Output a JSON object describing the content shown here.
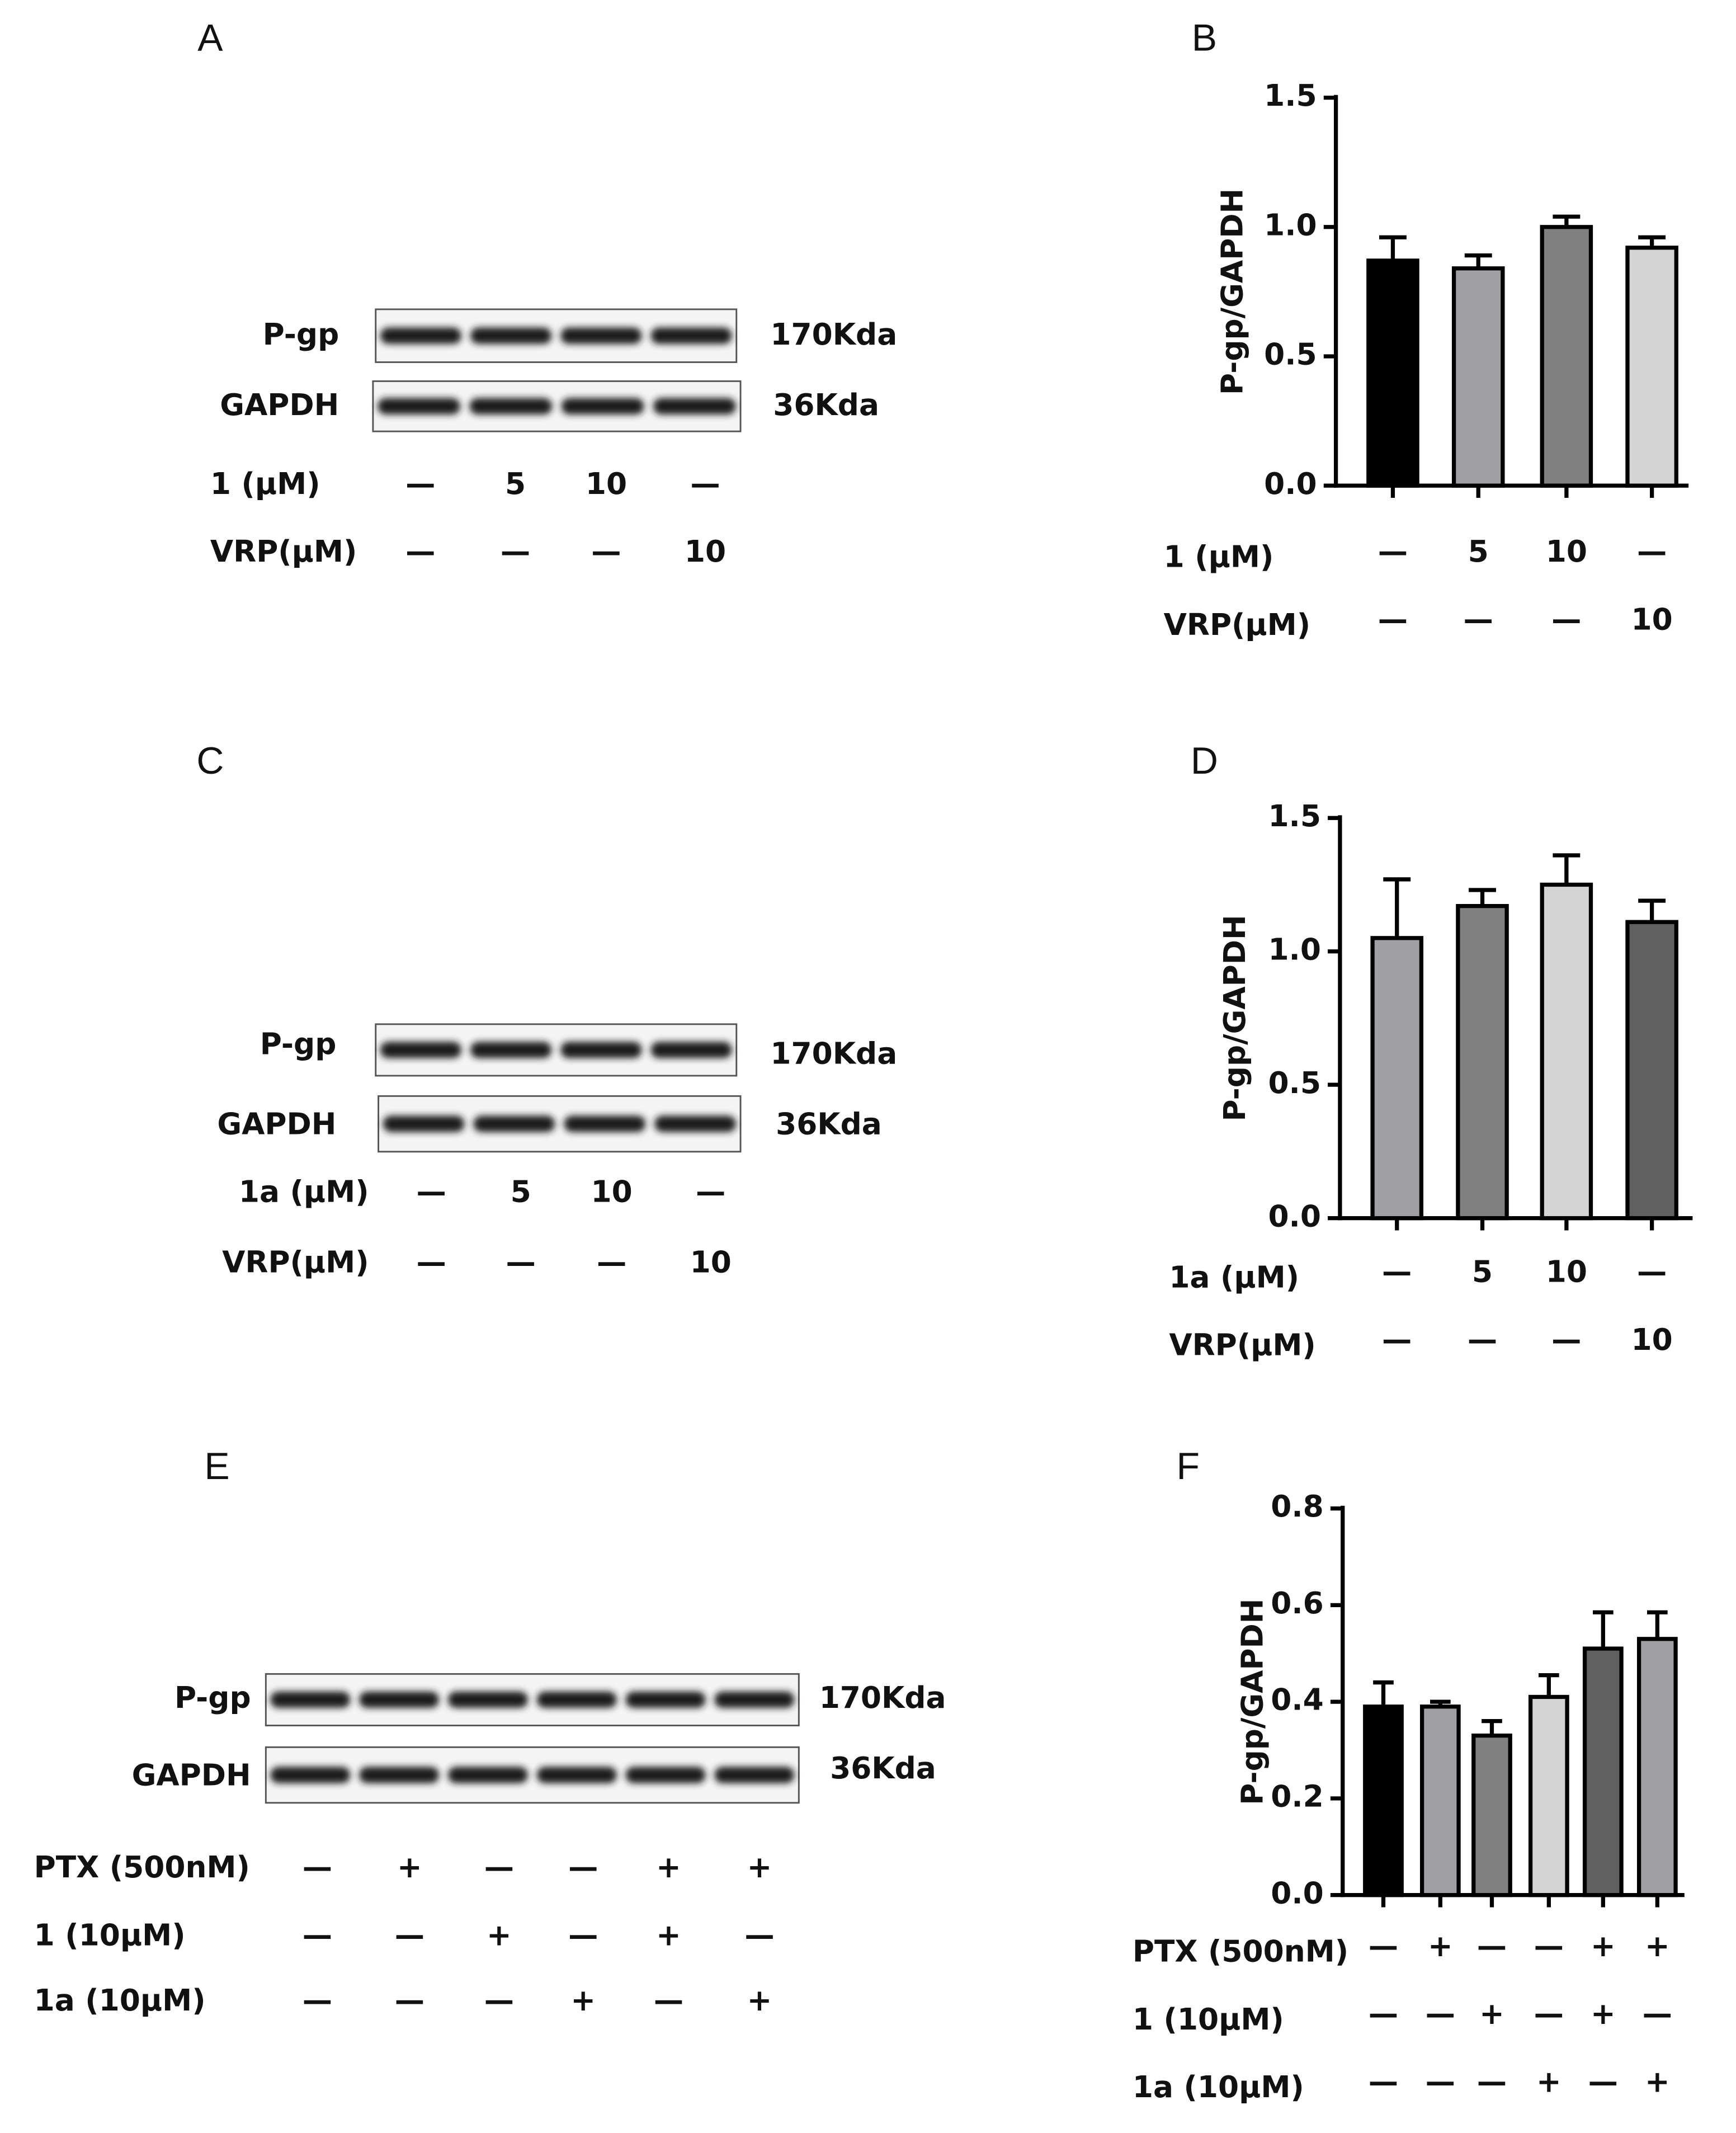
{
  "blots": [
    {
      "panel": "A",
      "rows": [
        {
          "label": "P-gp",
          "size": "170Kda"
        },
        {
          "label": "GAPDH",
          "size": "36Kda"
        }
      ],
      "conditions": [
        {
          "label": "1 (μM)",
          "values": [
            "—",
            "5",
            "10",
            "—"
          ]
        },
        {
          "label": "VRP(μM)",
          "values": [
            "—",
            "—",
            "—",
            "10"
          ]
        }
      ]
    },
    {
      "panel": "C",
      "rows": [
        {
          "label": "P-gp",
          "size": "170Kda"
        },
        {
          "label": "GAPDH",
          "size": "36Kda"
        }
      ],
      "conditions": [
        {
          "label": "1a (μM)",
          "values": [
            "—",
            "5",
            "10",
            "—"
          ]
        },
        {
          "label": "VRP(μM)",
          "values": [
            "—",
            "—",
            "—",
            "10"
          ]
        }
      ]
    },
    {
      "panel": "E",
      "rows": [
        {
          "label": "P-gp",
          "size": "170Kda"
        },
        {
          "label": "GAPDH",
          "size": "36Kda"
        }
      ],
      "conditions": [
        {
          "label": "PTX (500nM)",
          "values": [
            "—",
            "+",
            "—",
            "—",
            "+",
            "+"
          ]
        },
        {
          "label": "1 (10μM)",
          "values": [
            "—",
            "—",
            "+",
            "—",
            "+",
            "—"
          ]
        },
        {
          "label": "1a (10μM)",
          "values": [
            "—",
            "—",
            "—",
            "+",
            "—",
            "+"
          ]
        }
      ]
    }
  ],
  "chart_data": [
    {
      "type": "bar",
      "panel": "B",
      "ylabel": "P-gp/GAPDH",
      "values": [
        0.87,
        0.84,
        1.0,
        0.92
      ],
      "errors": [
        0.09,
        0.05,
        0.04,
        0.04
      ],
      "colors": [
        "#000000",
        "#a0a0a4",
        "#808080",
        "#d4d4d4"
      ],
      "ylim": [
        0,
        1.5
      ],
      "yticks": [
        {
          "value": 0,
          "label": "0.0"
        },
        {
          "value": 0.5,
          "label": "0.5"
        },
        {
          "value": 1,
          "label": "1.0"
        },
        {
          "value": 1.5,
          "label": "1.5"
        }
      ],
      "conditions": [
        {
          "label": "1 (μM)",
          "values": [
            "—",
            "5",
            "10",
            "—"
          ]
        },
        {
          "label": "VRP(μM)",
          "values": [
            "—",
            "—",
            "—",
            "10"
          ]
        }
      ]
    },
    {
      "type": "bar",
      "panel": "D",
      "ylabel": "P-gp/GAPDH",
      "values": [
        1.05,
        1.17,
        1.25,
        1.11
      ],
      "errors": [
        0.22,
        0.06,
        0.11,
        0.08
      ],
      "colors": [
        "#a0a0a4",
        "#808080",
        "#d4d4d4",
        "#606060"
      ],
      "ylim": [
        0,
        1.5
      ],
      "yticks": [
        {
          "value": 0,
          "label": "0.0"
        },
        {
          "value": 0.5,
          "label": "0.5"
        },
        {
          "value": 1,
          "label": "1.0"
        },
        {
          "value": 1.5,
          "label": "1.5"
        }
      ],
      "conditions": [
        {
          "label": "1a (μM)",
          "values": [
            "—",
            "5",
            "10",
            "—"
          ]
        },
        {
          "label": "VRP(μM)",
          "values": [
            "—",
            "—",
            "—",
            "10"
          ]
        }
      ]
    },
    {
      "type": "bar",
      "panel": "F",
      "ylabel": "P-gp/GAPDH",
      "values": [
        0.39,
        0.39,
        0.33,
        0.41,
        0.51,
        0.53
      ],
      "errors": [
        0.05,
        0.01,
        0.03,
        0.045,
        0.075,
        0.055
      ],
      "colors": [
        "#000000",
        "#a0a0a4",
        "#808080",
        "#d4d4d4",
        "#606060",
        "#a0a0a4"
      ],
      "ylim": [
        0,
        0.8
      ],
      "yticks": [
        {
          "value": 0,
          "label": "0.0"
        },
        {
          "value": 0.2,
          "label": "0.2"
        },
        {
          "value": 0.4,
          "label": "0.4"
        },
        {
          "value": 0.6,
          "label": "0.6"
        },
        {
          "value": 0.8,
          "label": "0.8"
        }
      ],
      "conditions": [
        {
          "label": "PTX (500nM)",
          "values": [
            "—",
            "+",
            "—",
            "—",
            "+",
            "+"
          ]
        },
        {
          "label": "1 (10μM)",
          "values": [
            "—",
            "—",
            "+",
            "—",
            "+",
            "—"
          ]
        },
        {
          "label": "1a (10μM)",
          "values": [
            "—",
            "—",
            "—",
            "+",
            "—",
            "+"
          ]
        }
      ]
    }
  ]
}
